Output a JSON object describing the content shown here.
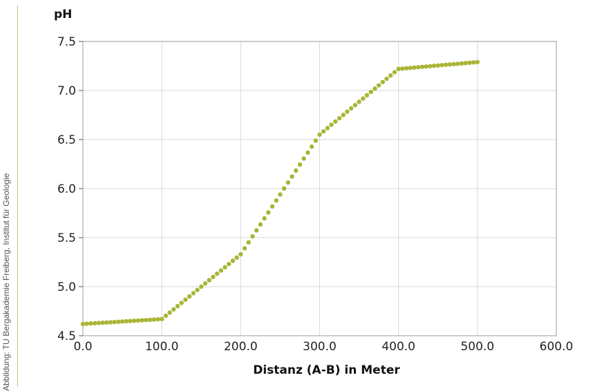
{
  "credit": "Abbildung: TU Bergakademie Freiberg, Institut für Geologie",
  "chart_data": {
    "type": "scatter",
    "title": "",
    "xlabel": "Distanz (A-B) in Meter",
    "ylabel": "pH",
    "xlim": [
      0,
      600
    ],
    "ylim": [
      4.5,
      7.5
    ],
    "xticks": [
      "0.0",
      "100.0",
      "200.0",
      "300.0",
      "400.0",
      "500.0",
      "600.0"
    ],
    "yticks": [
      "4.5",
      "5.0",
      "5.5",
      "6.0",
      "6.5",
      "7.0",
      "7.5"
    ],
    "grid": true,
    "legend": "none",
    "colors": {
      "marker": "#a8b536",
      "grid": "#d9d9d9",
      "frame": "#9a9a9a"
    },
    "series": [
      {
        "name": "",
        "points": [
          [
            0,
            4.62
          ],
          [
            100,
            4.67
          ],
          [
            200,
            5.33
          ],
          [
            300,
            6.55
          ],
          [
            400,
            7.22
          ],
          [
            500,
            7.29
          ]
        ],
        "sample_step": 5
      }
    ]
  }
}
